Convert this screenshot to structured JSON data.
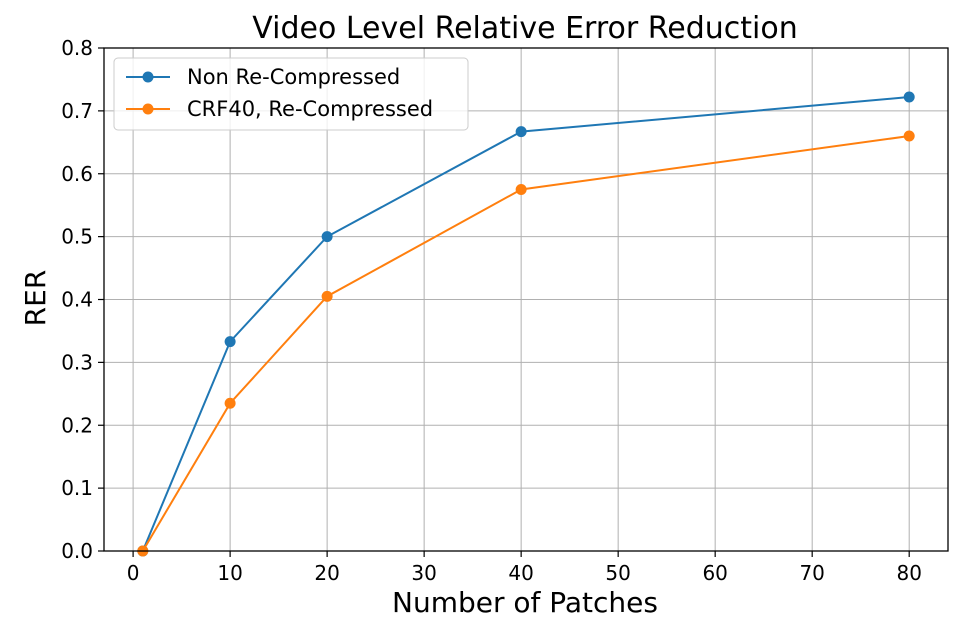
{
  "chart_data": {
    "type": "line",
    "title": "Video Level Relative Error Reduction",
    "xlabel": "Number of Patches",
    "ylabel": "RER",
    "xlim": [
      -3,
      84
    ],
    "ylim": [
      0,
      0.8
    ],
    "xticks": [
      "0",
      "10",
      "20",
      "30",
      "40",
      "50",
      "60",
      "70",
      "80"
    ],
    "yticks": [
      "0.0",
      "0.1",
      "0.2",
      "0.3",
      "0.4",
      "0.5",
      "0.6",
      "0.7",
      "0.8"
    ],
    "grid": true,
    "legend_position": "top-left",
    "series": [
      {
        "name": "Non Re-Compressed",
        "color": "#1f77b4",
        "x": [
          1,
          10,
          20,
          40,
          80
        ],
        "y": [
          0.0,
          0.333,
          0.5,
          0.667,
          0.722
        ]
      },
      {
        "name": "CRF40, Re-Compressed",
        "color": "#ff7f0e",
        "x": [
          1,
          10,
          20,
          40,
          80
        ],
        "y": [
          0.0,
          0.235,
          0.405,
          0.575,
          0.66
        ]
      }
    ]
  }
}
